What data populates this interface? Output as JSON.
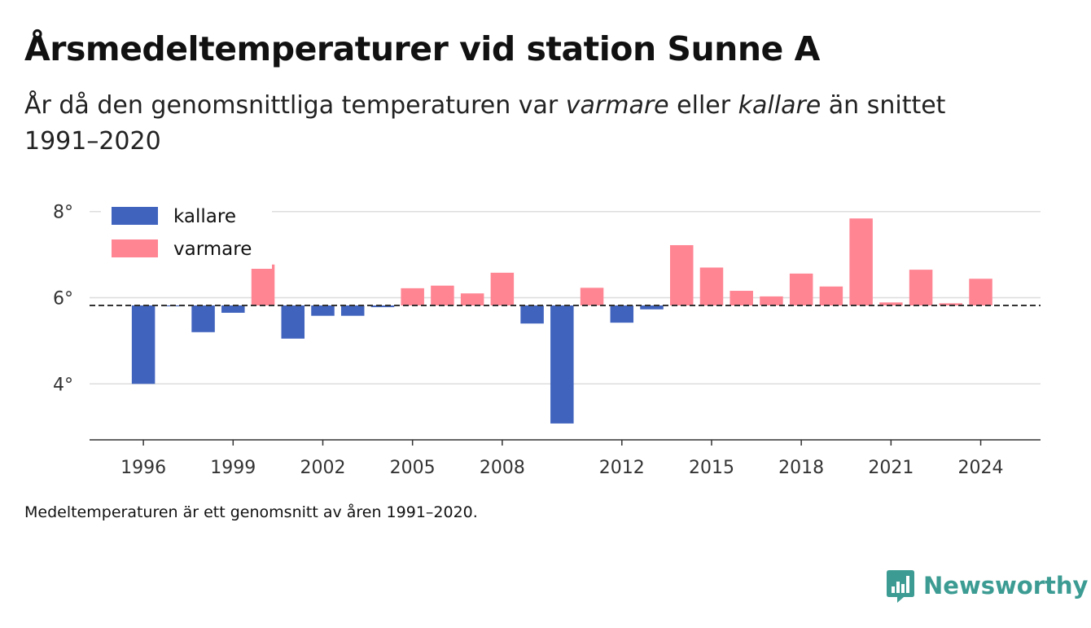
{
  "title": "Årsmedeltemperaturer vid station Sunne A",
  "subtitle": {
    "part1": "År då den genomsnittliga temperaturen var ",
    "warm_word": "varmare",
    "part2": " eller ",
    "cold_word": "kallare",
    "part3": " än snittet 1991–2020"
  },
  "note": "Medeltemperaturen är ett genomsnitt av åren 1991–2020.",
  "brand": {
    "name": "Newsworthy",
    "icon": "newsworthy-logo-icon"
  },
  "colors": {
    "kallare": "#4063be",
    "varmare": "#ff8593",
    "grid": "#dddddd",
    "brand": "#3c9c93"
  },
  "chart_data": {
    "type": "bar",
    "baseline": 5.82,
    "baseline_style": "dashed",
    "ylim": [
      2.7,
      8.6
    ],
    "yticks": [
      4,
      6,
      8
    ],
    "ytick_labels": [
      "4°",
      "6°",
      "8°"
    ],
    "xticks": [
      1996,
      1999,
      2002,
      2005,
      2008,
      2012,
      2015,
      2018,
      2021,
      2024
    ],
    "xlim": [
      1994.2,
      2026.0
    ],
    "grid": true,
    "legend": {
      "placement": "top-left",
      "entries": [
        {
          "key": "kallare",
          "label": "kallare"
        },
        {
          "key": "varmare",
          "label": "varmare"
        }
      ]
    },
    "x": [
      1996,
      1997,
      1998,
      1999,
      2000,
      2001,
      2002,
      2003,
      2004,
      2005,
      2006,
      2007,
      2008,
      2009,
      2010,
      2011,
      2012,
      2013,
      2014,
      2015,
      2016,
      2017,
      2018,
      2019,
      2020,
      2021,
      2022,
      2023,
      2024
    ],
    "values": [
      4.0,
      5.8,
      5.2,
      5.65,
      6.77,
      5.05,
      5.58,
      5.58,
      5.78,
      6.22,
      6.28,
      6.1,
      6.58,
      5.4,
      3.08,
      6.23,
      5.42,
      5.73,
      7.22,
      6.7,
      6.16,
      6.03,
      6.56,
      6.26,
      7.84,
      5.89,
      6.65,
      5.87,
      6.44
    ]
  }
}
